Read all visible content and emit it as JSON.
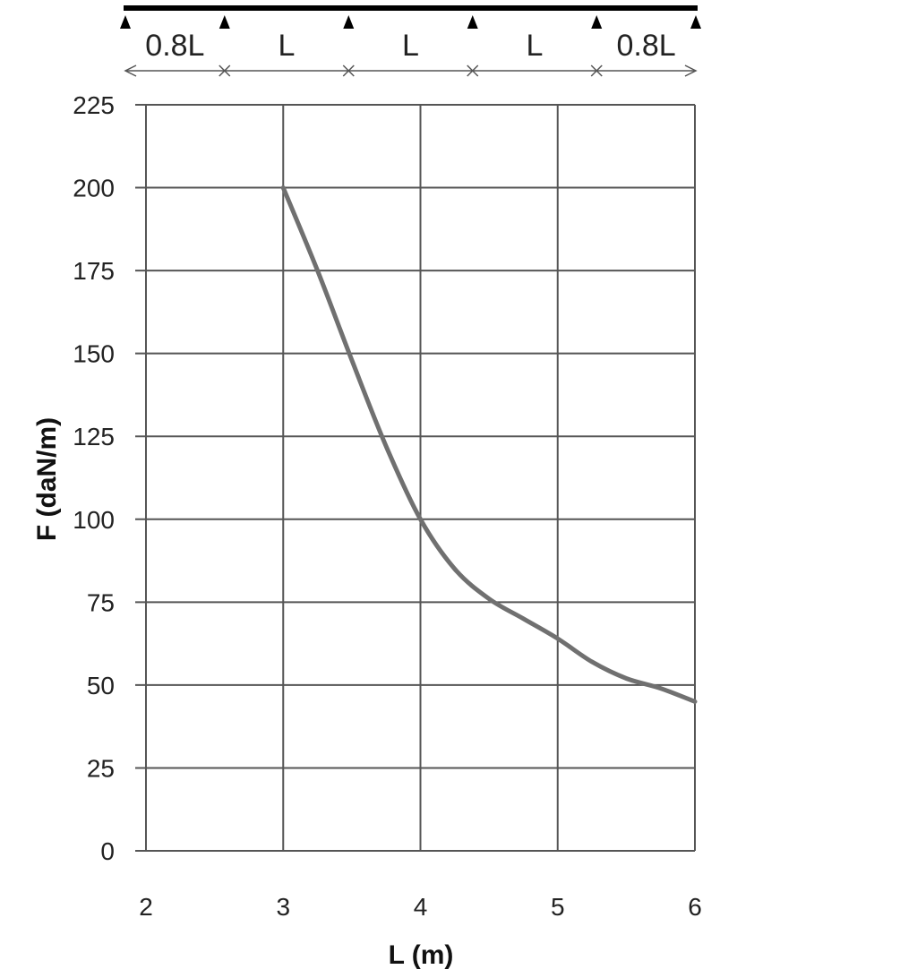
{
  "beam_diagram": {
    "spans": [
      "0.8L",
      "L",
      "L",
      "L",
      "0.8L"
    ],
    "span_ratios": [
      0.8,
      1,
      1,
      1,
      0.8
    ]
  },
  "chart_data": {
    "type": "line",
    "title": "",
    "xlabel": "L (m)",
    "ylabel": "F (daN/m)",
    "xlim": [
      2,
      6
    ],
    "ylim": [
      0,
      225
    ],
    "xticks": [
      2,
      3,
      4,
      5,
      6
    ],
    "yticks": [
      0,
      25,
      50,
      75,
      100,
      125,
      150,
      175,
      200,
      225
    ],
    "grid": true,
    "series": [
      {
        "color": "#707070",
        "x": [
          3,
          3.25,
          3.5,
          3.75,
          4,
          4.25,
          4.5,
          4.75,
          5,
          5.25,
          5.5,
          5.75,
          6
        ],
        "y": [
          200,
          175,
          148,
          122,
          100,
          85,
          76,
          70,
          64,
          57,
          52,
          49,
          45
        ]
      }
    ]
  }
}
